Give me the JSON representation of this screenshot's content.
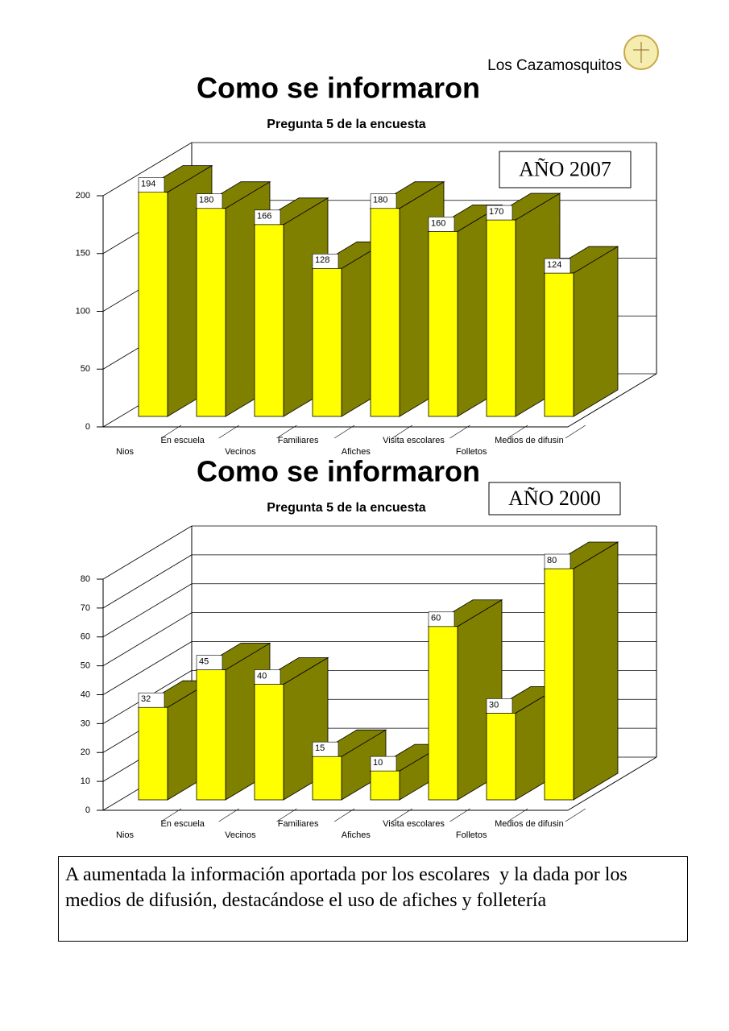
{
  "header": {
    "brand": "Los Cazamosquitos"
  },
  "chart_data": [
    {
      "type": "bar3d",
      "title": "Como se informaron",
      "subtitle": "Pregunta 5 de la encuesta",
      "annotation": "AÑO 2007",
      "categories": [
        "Nios",
        "En escuela",
        "Vecinos",
        "Familiares",
        "Afiches",
        "Visita escolares",
        "Folletos",
        "Medios de difusin"
      ],
      "values": [
        194,
        180,
        166,
        128,
        180,
        160,
        170,
        124
      ],
      "color": "#ffff00",
      "side_color": "#808000",
      "ylim": [
        0,
        200
      ],
      "yticks": [
        0,
        50,
        100,
        150,
        200
      ],
      "grid": true
    },
    {
      "type": "bar3d",
      "title": "Como se informaron",
      "subtitle": "Pregunta 5 de la encuesta",
      "annotation": "AÑO 2000",
      "categories": [
        "Nios",
        "En escuela",
        "Vecinos",
        "Familiares",
        "Afiches",
        "Visita escolares",
        "Folletos",
        "Medios de difusin"
      ],
      "values": [
        32,
        45,
        40,
        15,
        10,
        60,
        30,
        80
      ],
      "color": "#ffff00",
      "side_color": "#808000",
      "ylim": [
        0,
        80
      ],
      "yticks": [
        0,
        10,
        20,
        30,
        40,
        50,
        60,
        70,
        80
      ],
      "grid": true
    }
  ],
  "note": "A aumentada la información aportada por los escolares  y la dada por los medios de difusión, destacándose el uso de afiches y folletería"
}
